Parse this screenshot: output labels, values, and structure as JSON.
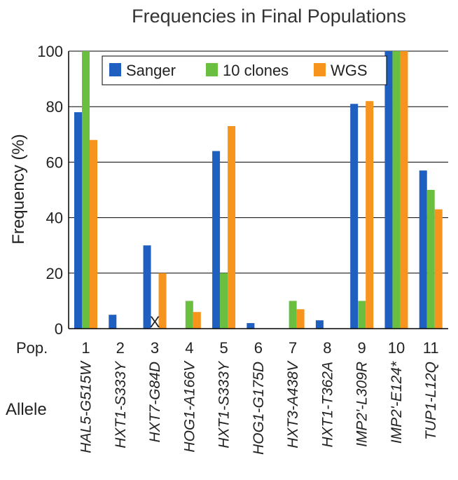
{
  "chart_data": {
    "type": "bar",
    "title": "Frequencies in Final Populations",
    "ylabel": "Frequency (%)",
    "ylim": [
      0,
      100
    ],
    "yticks": [
      0,
      20,
      40,
      60,
      80,
      100
    ],
    "grid": true,
    "legend_position": "top-right",
    "pop_label": "Pop.",
    "allele_label": "Allele",
    "categories": [
      "1",
      "2",
      "3",
      "4",
      "5",
      "6",
      "7",
      "8",
      "9",
      "10",
      "11"
    ],
    "alleles": [
      "HAL5-G515W",
      "HXT1-S333Y",
      "HXT7-G84D",
      "HOG1-A166V",
      "HXT1-S333Y",
      "HOG1-G175D",
      "HXT3-A438V",
      "HXT1-T362A",
      "IMP2'-L309R",
      "IMP2'-E124*",
      "TUP1-L12Q"
    ],
    "series": [
      {
        "name": "Sanger",
        "color": "#1f5fbf",
        "values": [
          78,
          5,
          30,
          0,
          64,
          2,
          0,
          3,
          81,
          100,
          57
        ]
      },
      {
        "name": "10 clones",
        "color": "#6abf40",
        "values": [
          100,
          0,
          0,
          10,
          20,
          0,
          10,
          0,
          10,
          100,
          50
        ]
      },
      {
        "name": "WGS",
        "color": "#f7941d",
        "values": [
          68,
          0,
          20,
          6,
          73,
          0,
          7,
          0,
          82,
          100,
          43
        ]
      }
    ],
    "annotations": [
      {
        "category": "3",
        "series": "10 clones",
        "text": "X"
      }
    ]
  }
}
